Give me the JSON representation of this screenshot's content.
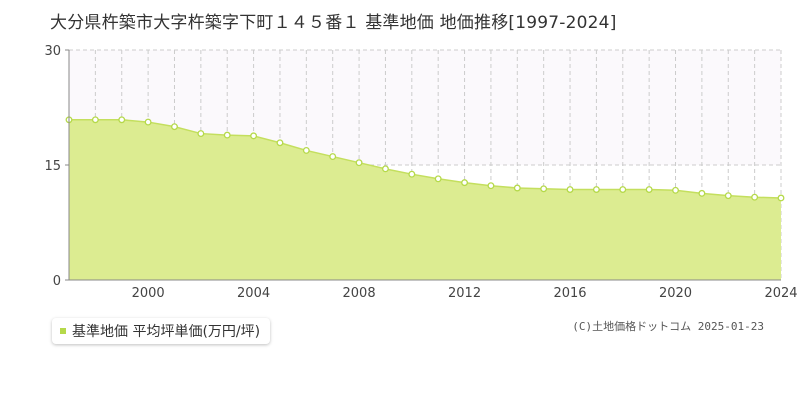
{
  "title": "大分県杵築市大字杵築字下町１４５番１ 基準地価 地価推移[1997-2024]",
  "legend": {
    "label": "基準地価 平均坪単価(万円/坪)"
  },
  "credit": "(C)土地価格ドットコム 2025-01-23",
  "colors": {
    "fill": "#dcec91",
    "line": "#c4df5e",
    "marker": "#b5d94a",
    "grid": "#cccccc",
    "axis": "#888888"
  },
  "chart_data": {
    "type": "area",
    "title": "大分県杵築市大字杵築字下町１４５番１ 基準地価 地価推移[1997-2024]",
    "xlabel": "",
    "ylabel": "",
    "xlim": [
      1997,
      2024
    ],
    "ylim": [
      0,
      30
    ],
    "yticks": [
      "0",
      "15",
      "30"
    ],
    "xticks": [
      "2000",
      "2004",
      "2008",
      "2012",
      "2016",
      "2020",
      "2024"
    ],
    "grid": true,
    "legend_position": "bottom-left",
    "series": [
      {
        "name": "基準地価 平均坪単価(万円/坪)",
        "x": [
          1997,
          1998,
          1999,
          2000,
          2001,
          2002,
          2003,
          2004,
          2005,
          2006,
          2007,
          2008,
          2009,
          2010,
          2011,
          2012,
          2013,
          2014,
          2015,
          2016,
          2017,
          2018,
          2019,
          2020,
          2021,
          2022,
          2023,
          2024
        ],
        "values": [
          20.9,
          20.9,
          20.9,
          20.6,
          20.0,
          19.1,
          18.9,
          18.8,
          17.9,
          16.9,
          16.1,
          15.3,
          14.5,
          13.8,
          13.2,
          12.7,
          12.3,
          12.0,
          11.9,
          11.8,
          11.8,
          11.8,
          11.8,
          11.7,
          11.3,
          11.0,
          10.8,
          10.7
        ]
      }
    ]
  }
}
